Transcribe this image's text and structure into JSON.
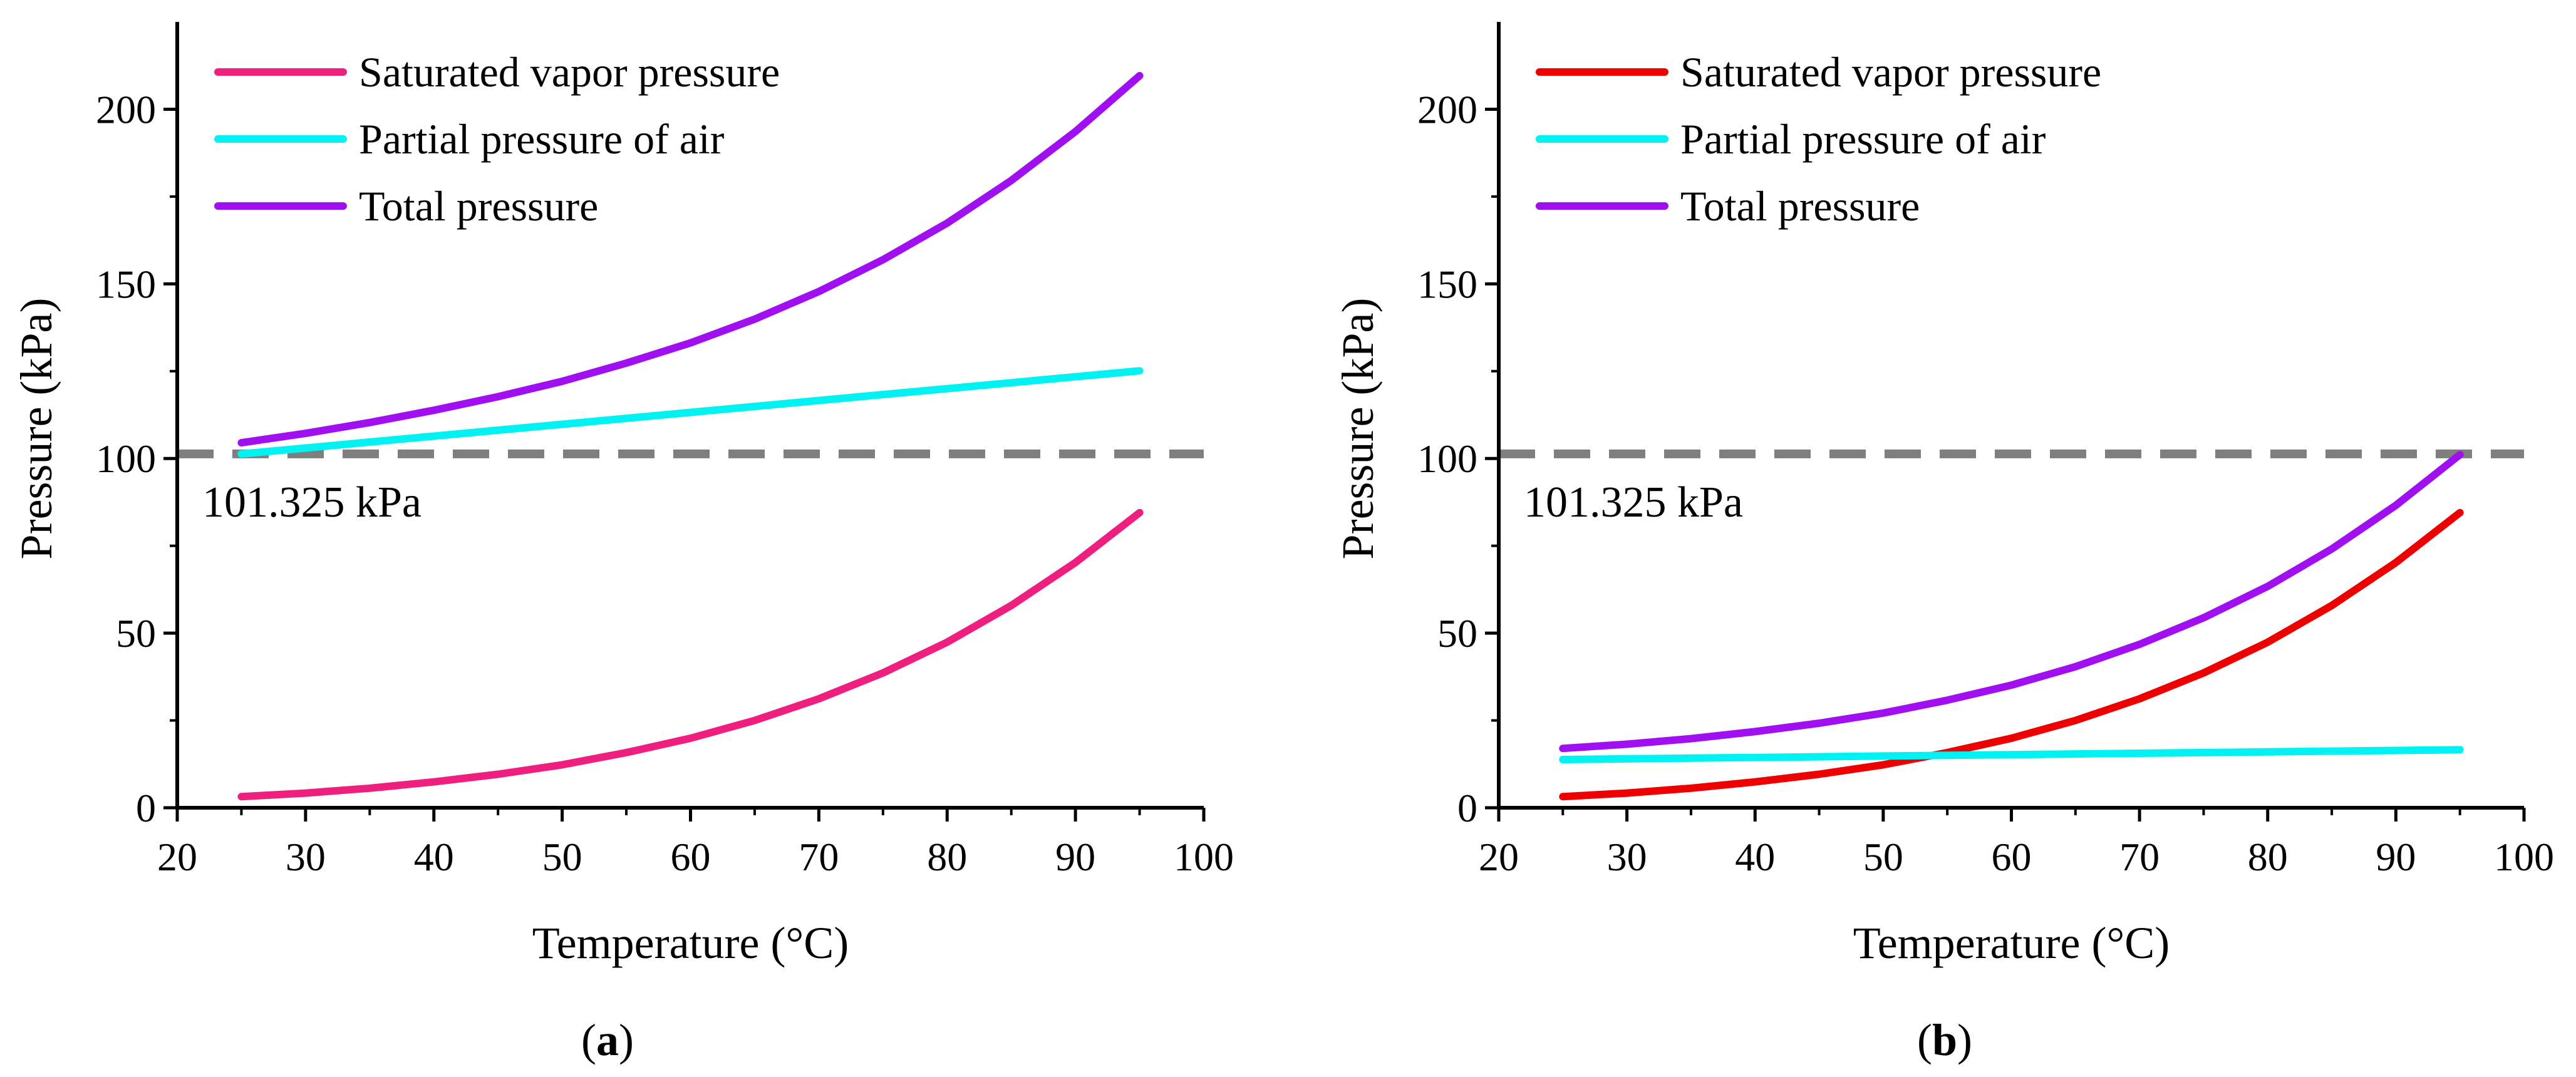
{
  "chart_data": [
    {
      "type": "line",
      "panel_label": "a",
      "xlabel": "Temperature (°C)",
      "ylabel": "Pressure (kPa)",
      "xlim": [
        20,
        100
      ],
      "ylim": [
        0,
        225
      ],
      "xticks": [
        20,
        30,
        40,
        50,
        60,
        70,
        80,
        90,
        100
      ],
      "yticks": [
        0,
        50,
        100,
        150,
        200
      ],
      "legend_position": "top-left",
      "x": [
        25,
        30,
        35,
        40,
        45,
        50,
        55,
        60,
        65,
        70,
        75,
        80,
        85,
        90,
        95
      ],
      "series": [
        {
          "name": "Saturated vapor pressure",
          "color": "#ee1f7f",
          "values": [
            3.2,
            4.2,
            5.6,
            7.4,
            9.6,
            12.3,
            15.8,
            19.9,
            25.0,
            31.2,
            38.6,
            47.4,
            57.9,
            70.2,
            84.5
          ]
        },
        {
          "name": "Partial pressure of air",
          "color": "#00f2f2",
          "values": [
            101.3,
            103.0,
            104.7,
            106.4,
            108.1,
            109.8,
            111.5,
            113.2,
            114.9,
            116.6,
            118.3,
            120.0,
            121.7,
            123.4,
            125.1
          ]
        },
        {
          "name": "Total pressure",
          "color": "#9f0ff0",
          "values": [
            104.5,
            107.2,
            110.3,
            113.8,
            117.7,
            122.1,
            127.3,
            133.1,
            139.9,
            147.8,
            156.9,
            167.4,
            179.6,
            193.6,
            209.6
          ]
        }
      ],
      "reference_line": {
        "y": 101.325,
        "label": "101.325 kPa",
        "color": "#7f7f7f"
      }
    },
    {
      "type": "line",
      "panel_label": "b",
      "xlabel": "Temperature (°C)",
      "ylabel": "Pressure (kPa)",
      "xlim": [
        20,
        100
      ],
      "ylim": [
        0,
        225
      ],
      "xticks": [
        20,
        30,
        40,
        50,
        60,
        70,
        80,
        90,
        100
      ],
      "yticks": [
        0,
        50,
        100,
        150,
        200
      ],
      "legend_position": "top-left",
      "x": [
        25,
        30,
        35,
        40,
        45,
        50,
        55,
        60,
        65,
        70,
        75,
        80,
        85,
        90,
        95
      ],
      "series": [
        {
          "name": "Saturated vapor pressure",
          "color": "#ee0000",
          "values": [
            3.2,
            4.2,
            5.6,
            7.4,
            9.6,
            12.3,
            15.8,
            19.9,
            25.0,
            31.2,
            38.6,
            47.4,
            57.9,
            70.2,
            84.5
          ]
        },
        {
          "name": "Partial pressure of air",
          "color": "#00f2f2",
          "values": [
            13.8,
            14.0,
            14.2,
            14.4,
            14.6,
            14.8,
            15.0,
            15.2,
            15.4,
            15.6,
            15.8,
            16.0,
            16.2,
            16.4,
            16.6
          ]
        },
        {
          "name": "Total pressure",
          "color": "#9f0ff0",
          "values": [
            17.0,
            18.2,
            19.8,
            21.8,
            24.2,
            27.1,
            30.8,
            35.1,
            40.4,
            46.8,
            54.4,
            63.4,
            74.1,
            86.6,
            101.1
          ]
        }
      ],
      "reference_line": {
        "y": 101.325,
        "label": "101.325 kPa",
        "color": "#7f7f7f"
      }
    }
  ]
}
